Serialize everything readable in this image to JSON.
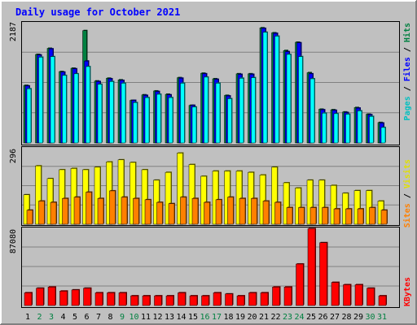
{
  "chart_data": [
    {
      "type": "bar",
      "title": "Daily usage for October 2021",
      "ylabel": "Pages / Files / Hits",
      "ylabel_parts": [
        "Pages",
        "Files",
        "Hits"
      ],
      "ymax_label": "2187",
      "ylim": [
        0,
        2187
      ],
      "categories": [
        "1",
        "2",
        "3",
        "4",
        "5",
        "6",
        "7",
        "8",
        "9",
        "10",
        "11",
        "12",
        "13",
        "14",
        "15",
        "16",
        "17",
        "18",
        "19",
        "20",
        "21",
        "22",
        "23",
        "24",
        "25",
        "26",
        "27",
        "28",
        "29",
        "30",
        "31"
      ],
      "series": [
        {
          "name": "Hits",
          "color": "#008040",
          "values": [
            1040,
            1600,
            1710,
            1290,
            1350,
            2030,
            1120,
            1170,
            1140,
            770,
            870,
            940,
            880,
            1180,
            680,
            1260,
            1160,
            860,
            1250,
            1250,
            2080,
            1990,
            1670,
            1820,
            1270,
            610,
            600,
            560,
            640,
            520,
            370
          ]
        },
        {
          "name": "Files",
          "color": "#0000ff",
          "values": [
            1030,
            1590,
            1700,
            1280,
            1340,
            1480,
            1110,
            1160,
            1130,
            770,
            860,
            930,
            870,
            1170,
            680,
            1250,
            1150,
            850,
            1240,
            1240,
            2070,
            1980,
            1650,
            1810,
            1250,
            600,
            590,
            550,
            630,
            510,
            360
          ]
        },
        {
          "name": "Pages",
          "color": "#00ffff",
          "values": [
            980,
            1550,
            1560,
            1220,
            1250,
            1380,
            1060,
            1110,
            1080,
            730,
            820,
            880,
            820,
            1080,
            650,
            1190,
            1080,
            800,
            1170,
            1180,
            2000,
            1930,
            1600,
            1560,
            1160,
            540,
            530,
            520,
            580,
            480,
            280
          ]
        }
      ],
      "grid": true
    },
    {
      "type": "bar",
      "ylabel": "Sites / Visits",
      "ylabel_parts": [
        "Sites",
        "Visits"
      ],
      "ymax_label": "296",
      "ylim": [
        0,
        296
      ],
      "categories": [
        "1",
        "2",
        "3",
        "4",
        "5",
        "6",
        "7",
        "8",
        "9",
        "10",
        "11",
        "12",
        "13",
        "14",
        "15",
        "16",
        "17",
        "18",
        "19",
        "20",
        "21",
        "22",
        "23",
        "24",
        "25",
        "26",
        "27",
        "28",
        "29",
        "30",
        "31"
      ],
      "series": [
        {
          "name": "Visits",
          "color": "#ffff00",
          "values": [
            113,
            224,
            175,
            209,
            214,
            209,
            219,
            239,
            247,
            237,
            209,
            169,
            199,
            273,
            229,
            184,
            204,
            204,
            204,
            199,
            189,
            219,
            159,
            139,
            169,
            169,
            149,
            119,
            129,
            129,
            89
          ]
        },
        {
          "name": "Sites",
          "color": "#ff8000",
          "values": [
            54,
            89,
            84,
            99,
            104,
            123,
            99,
            128,
            104,
            99,
            94,
            84,
            79,
            104,
            99,
            84,
            94,
            104,
            99,
            99,
            89,
            84,
            64,
            64,
            64,
            64,
            59,
            59,
            59,
            64,
            54
          ]
        }
      ],
      "grid": true
    },
    {
      "type": "bar",
      "ylabel": "KBytes",
      "ymax_label": "87080",
      "ylim": [
        0,
        87080
      ],
      "categories": [
        "1",
        "2",
        "3",
        "4",
        "5",
        "6",
        "7",
        "8",
        "9",
        "10",
        "11",
        "12",
        "13",
        "14",
        "15",
        "16",
        "17",
        "18",
        "19",
        "20",
        "21",
        "22",
        "23",
        "24",
        "25",
        "26",
        "27",
        "28",
        "29",
        "30",
        "31"
      ],
      "series": [
        {
          "name": "KBytes",
          "color": "#ff0000",
          "values": [
            14200,
            19300,
            20600,
            16100,
            17400,
            19300,
            14200,
            14200,
            14200,
            10800,
            10800,
            10800,
            10800,
            14200,
            10800,
            10800,
            14200,
            12900,
            10800,
            14200,
            14200,
            20600,
            20600,
            46300,
            85800,
            70100,
            25800,
            23200,
            23200,
            19300,
            10800
          ]
        }
      ],
      "grid": true
    }
  ],
  "weekend_days": [
    "2",
    "3",
    "9",
    "10",
    "16",
    "17",
    "23",
    "24",
    "30",
    "31"
  ]
}
